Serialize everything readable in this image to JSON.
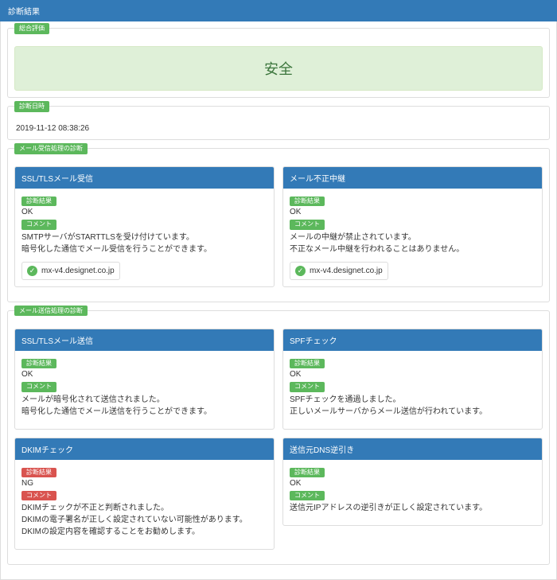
{
  "header": {
    "title": "診断結果"
  },
  "overall": {
    "legend": "総合評価",
    "value": "安全"
  },
  "datetime": {
    "legend": "診断日時",
    "value": "2019-11-12 08:38:26"
  },
  "labels": {
    "result": "診断結果",
    "comment": "コメント"
  },
  "sections": [
    {
      "legend": "メール受信処理の診断",
      "panels": [
        {
          "title": "SSL/TLSメール受信",
          "result": "OK",
          "result_badge": "green",
          "comment_badge": "green",
          "comments": [
            "SMTPサーバがSTARTTLSを受け付けています。",
            "暗号化した通信でメール受信を行うことができます。"
          ],
          "server": "mx-v4.designet.co.jp"
        },
        {
          "title": "メール不正中継",
          "result": "OK",
          "result_badge": "green",
          "comment_badge": "green",
          "comments": [
            "メールの中継が禁止されています。",
            "不正なメール中継を行われることはありません。"
          ],
          "server": "mx-v4.designet.co.jp"
        }
      ]
    },
    {
      "legend": "メール送信処理の診断",
      "panels": [
        {
          "title": "SSL/TLSメール送信",
          "result": "OK",
          "result_badge": "green",
          "comment_badge": "green",
          "comments": [
            "メールが暗号化されて送信されました。",
            "暗号化した通信でメール送信を行うことができます。"
          ]
        },
        {
          "title": "SPFチェック",
          "result": "OK",
          "result_badge": "green",
          "comment_badge": "green",
          "comments": [
            "SPFチェックを通過しました。",
            "正しいメールサーバからメール送信が行われています。"
          ]
        },
        {
          "title": "DKIMチェック",
          "result": "NG",
          "result_badge": "red",
          "comment_badge": "red",
          "comments": [
            "DKIMチェックが不正と判断されました。",
            "DKIMの電子署名が正しく設定されていない可能性があります。",
            "DKIMの設定内容を確認することをお勧めします。"
          ]
        },
        {
          "title": "送信元DNS逆引き",
          "result": "OK",
          "result_badge": "green",
          "comment_badge": "green",
          "comments": [
            "送信元IPアドレスの逆引きが正しく設定されています。"
          ]
        }
      ]
    }
  ]
}
